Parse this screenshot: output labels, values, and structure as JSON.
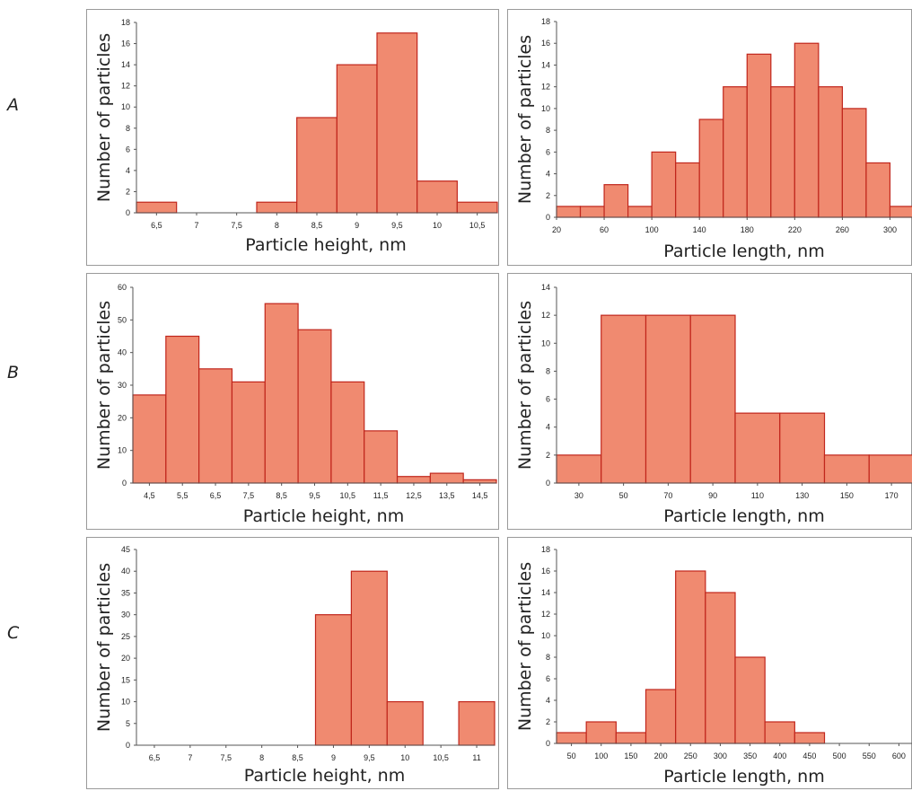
{
  "row_labels": [
    "A",
    "B",
    "C"
  ],
  "style": {
    "bar_fill": "#f08a70",
    "bar_stroke": "#c0261c",
    "frame": "#9a9a9a"
  },
  "chart_data": [
    {
      "id": "A-height",
      "type": "bar",
      "ylabel": "Number of particles",
      "xlabel": "Particle height, nm",
      "ylim": [
        0,
        18
      ],
      "yticks": [
        0,
        2,
        4,
        6,
        8,
        10,
        12,
        14,
        16,
        18
      ],
      "values": [
        1,
        0,
        0,
        1,
        9,
        14,
        17,
        3,
        1
      ],
      "x_tick_labels": [
        "6,5",
        "7",
        "7,5",
        "8",
        "8,5",
        "9",
        "9,5",
        "10",
        "10,5"
      ]
    },
    {
      "id": "A-length",
      "type": "bar",
      "ylabel": "Number of particles",
      "xlabel": "Particle length, nm",
      "ylim": [
        0,
        18
      ],
      "yticks": [
        0,
        2,
        4,
        6,
        8,
        10,
        12,
        14,
        16,
        18
      ],
      "values": [
        1,
        1,
        3,
        1,
        6,
        5,
        9,
        12,
        15,
        12,
        16,
        12,
        10,
        5,
        1
      ],
      "x_tick_labels": [
        "20",
        "60",
        "100",
        "140",
        "180",
        "220",
        "260",
        "300"
      ]
    },
    {
      "id": "B-height",
      "type": "bar",
      "ylabel": "Number of particles",
      "xlabel": "Particle height, nm",
      "ylim": [
        0,
        60
      ],
      "yticks": [
        0,
        10,
        20,
        30,
        40,
        50,
        60
      ],
      "values": [
        27,
        45,
        35,
        31,
        55,
        47,
        31,
        16,
        2,
        3,
        1
      ],
      "x_tick_labels": [
        "4,5",
        "5,5",
        "6,5",
        "7,5",
        "8,5",
        "9,5",
        "10,5",
        "11,5",
        "12,5",
        "13,5",
        "14,5"
      ]
    },
    {
      "id": "B-length",
      "type": "bar",
      "ylabel": "Number of particles",
      "xlabel": "Particle length, nm",
      "ylim": [
        0,
        14
      ],
      "yticks": [
        0,
        2,
        4,
        6,
        8,
        10,
        12,
        14
      ],
      "values": [
        2,
        12,
        12,
        12,
        5,
        5,
        2,
        2
      ],
      "x_tick_labels": [
        "30",
        "50",
        "70",
        "90",
        "110",
        "130",
        "150",
        "170"
      ]
    },
    {
      "id": "C-height",
      "type": "bar",
      "ylabel": "Number of particles",
      "xlabel": "Particle height, nm",
      "ylim": [
        0,
        45
      ],
      "yticks": [
        0,
        5,
        10,
        15,
        20,
        25,
        30,
        35,
        40,
        45
      ],
      "values": [
        0,
        0,
        0,
        0,
        0,
        30,
        40,
        10,
        0,
        10
      ],
      "x_tick_labels": [
        "6,5",
        "7",
        "7,5",
        "8",
        "8,5",
        "9",
        "9,5",
        "10",
        "10,5",
        "11"
      ]
    },
    {
      "id": "C-length",
      "type": "bar",
      "ylabel": "Number of particles",
      "xlabel": "Particle length, nm",
      "ylim": [
        0,
        18
      ],
      "yticks": [
        0,
        2,
        4,
        6,
        8,
        10,
        12,
        14,
        16,
        18
      ],
      "values": [
        1,
        2,
        1,
        5,
        16,
        14,
        8,
        2,
        1,
        0,
        0,
        0
      ],
      "x_tick_labels": [
        "50",
        "100",
        "150",
        "200",
        "250",
        "300",
        "350",
        "400",
        "450",
        "500",
        "550",
        "600"
      ]
    }
  ]
}
